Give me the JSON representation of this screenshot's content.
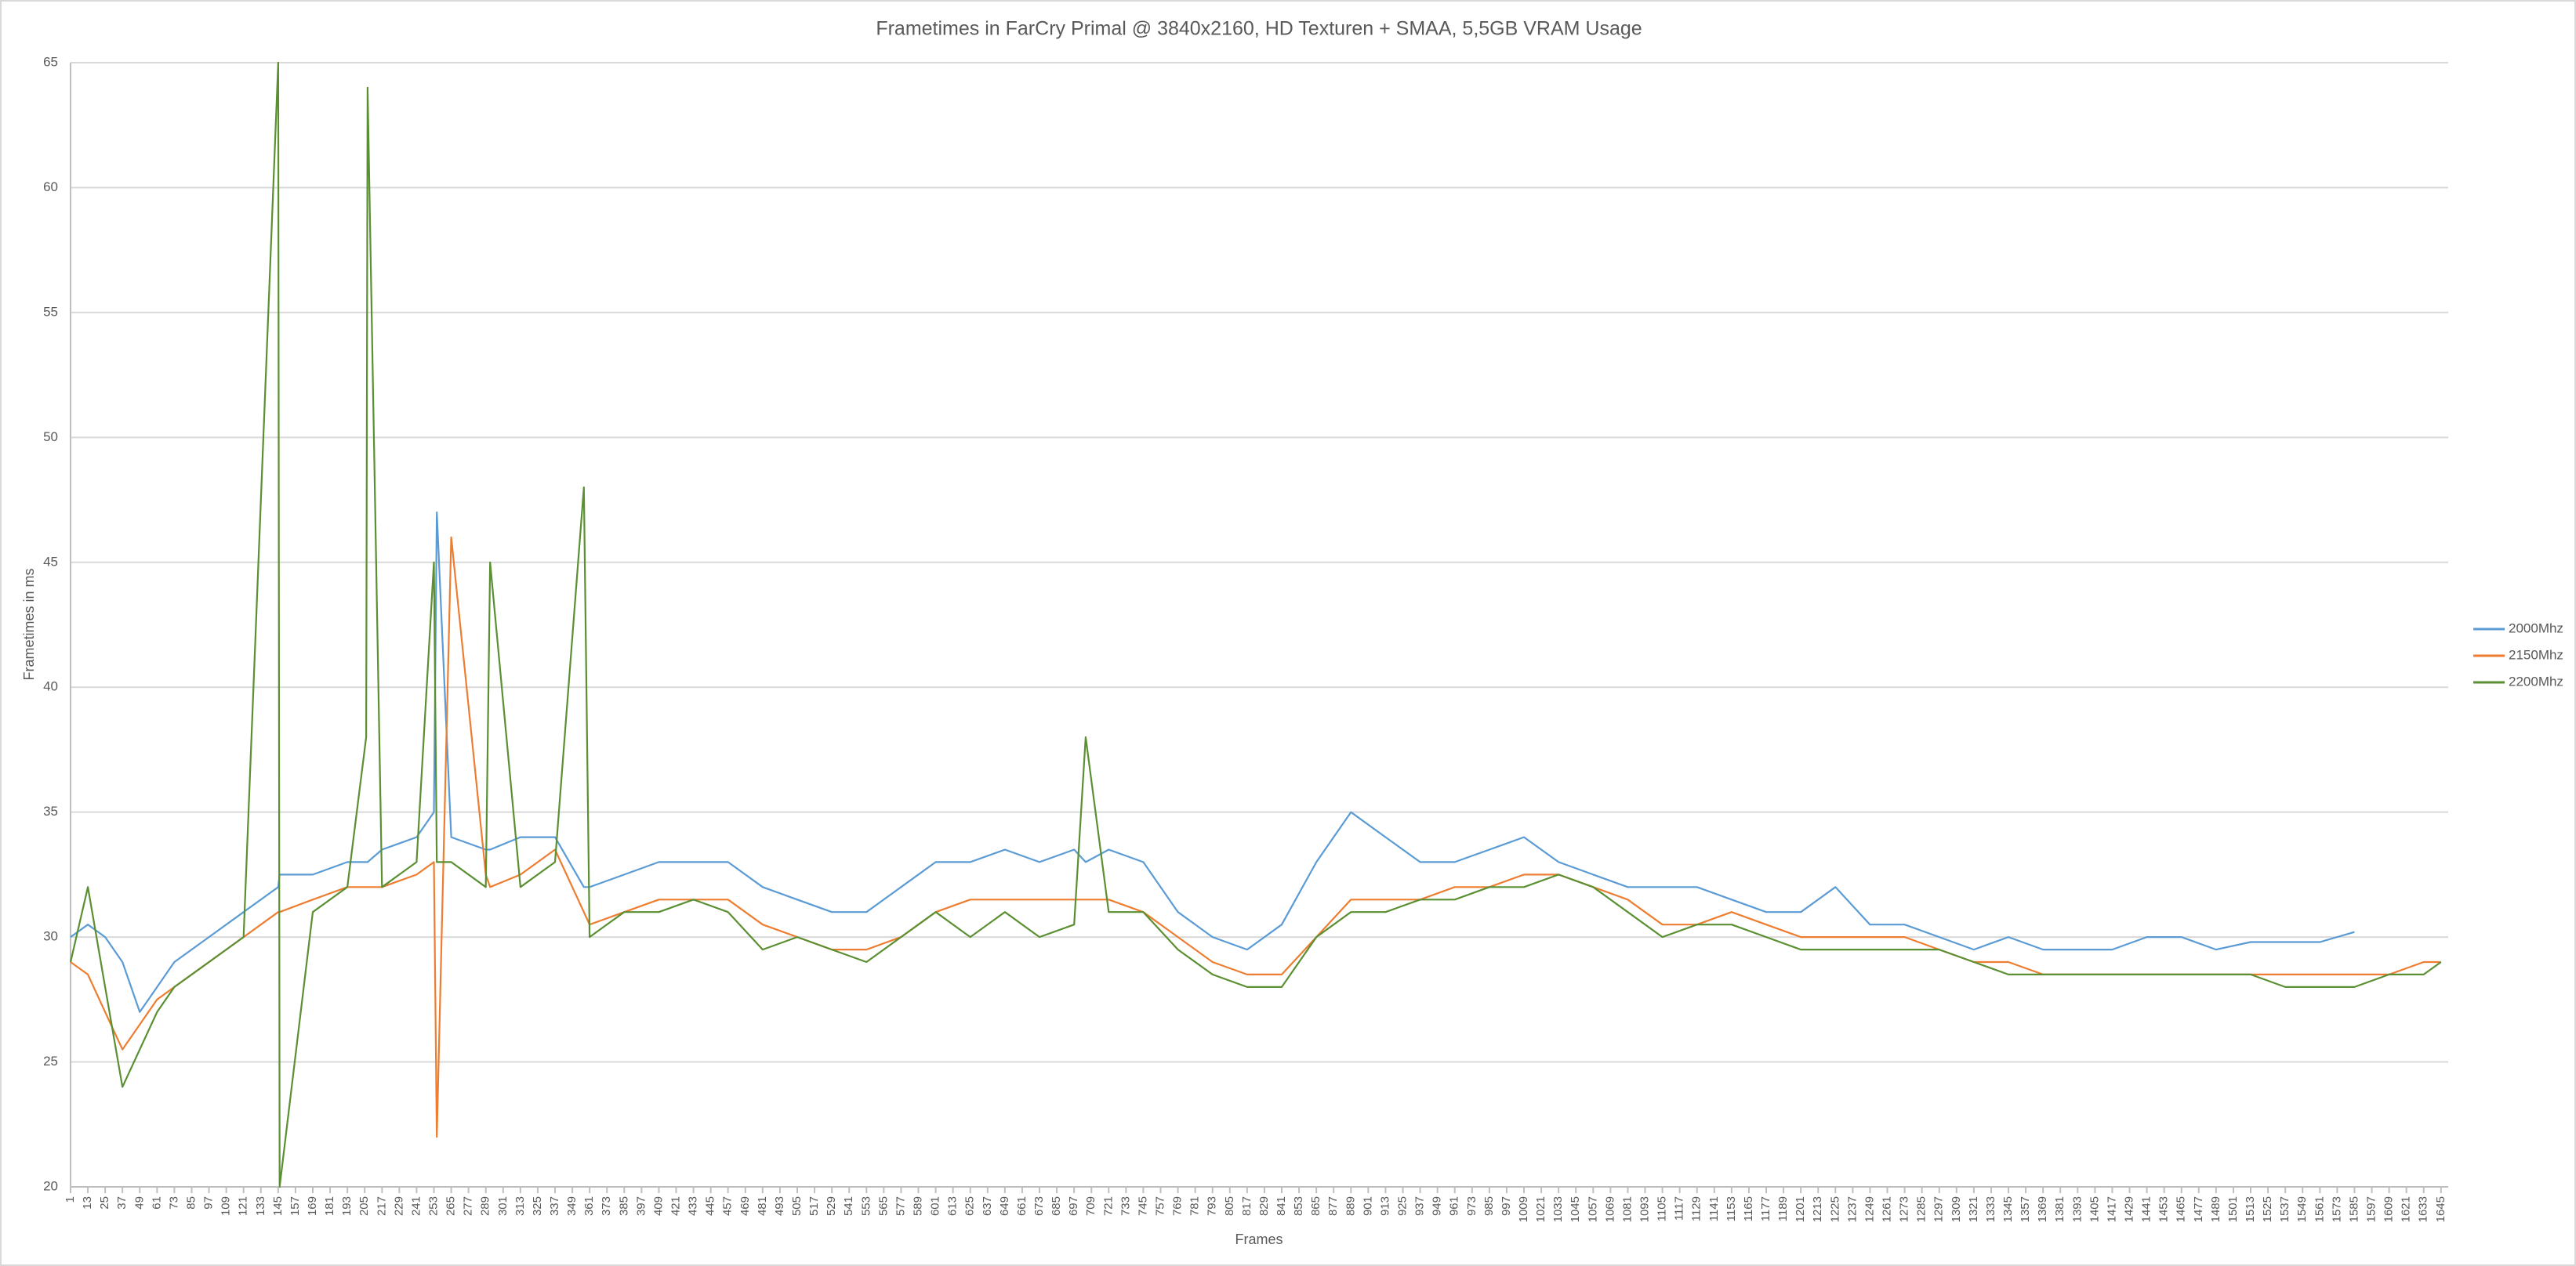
{
  "chart_data": {
    "type": "line",
    "title": "Frametimes in FarCry Primal @ 3840x2160, HD Texturen + SMAA, 5,5GB VRAM Usage",
    "xlabel": "Frames",
    "ylabel": "Frametimes in ms",
    "x": [
      1,
      13,
      25,
      37,
      49,
      61,
      73,
      97,
      121,
      145,
      146,
      169,
      193,
      206,
      207,
      217,
      241,
      253,
      255,
      265,
      289,
      292,
      313,
      337,
      357,
      361,
      385,
      409,
      433,
      457,
      481,
      505,
      529,
      553,
      577,
      601,
      625,
      649,
      673,
      697,
      705,
      721,
      745,
      769,
      793,
      817,
      841,
      865,
      889,
      913,
      937,
      961,
      985,
      1009,
      1033,
      1057,
      1081,
      1105,
      1129,
      1153,
      1177,
      1201,
      1225,
      1249,
      1273,
      1297,
      1321,
      1345,
      1369,
      1393,
      1417,
      1441,
      1465,
      1489,
      1513,
      1537,
      1561,
      1585,
      1609,
      1633,
      1645
    ],
    "series": [
      {
        "name": "2000Mhz",
        "color": "#5b9bd5",
        "values": [
          30,
          30.5,
          30,
          29,
          27,
          28,
          29,
          30,
          31,
          32,
          32.5,
          32.5,
          33,
          33,
          33,
          33.5,
          34,
          35,
          47,
          34,
          33.5,
          33.5,
          34,
          34,
          32,
          32,
          32.5,
          33,
          33,
          33,
          32,
          31.5,
          31,
          31,
          32,
          33,
          33,
          33.5,
          33,
          33.5,
          33,
          33.5,
          33,
          31,
          30,
          29.5,
          30.5,
          33,
          35,
          34,
          33,
          33,
          33.5,
          34,
          33,
          32.5,
          32,
          32,
          32,
          31.5,
          31,
          31,
          32,
          30.5,
          30.5,
          30,
          29.5,
          30,
          29.5,
          29.5,
          29.5,
          30,
          30,
          29.5,
          29.8,
          29.8,
          29.8,
          30.2,
          null,
          null,
          null
        ]
      },
      {
        "name": "2150Mhz",
        "color": "#ed7d31",
        "values": [
          29,
          28.5,
          27,
          25.5,
          26.5,
          27.5,
          28,
          29,
          30,
          31,
          31,
          31.5,
          32,
          32,
          32,
          32,
          32.5,
          33,
          22,
          46,
          32.5,
          32,
          32.5,
          33.5,
          31,
          30.5,
          31,
          31.5,
          31.5,
          31.5,
          30.5,
          30,
          29.5,
          29.5,
          30,
          31,
          31.5,
          31.5,
          31.5,
          31.5,
          31.5,
          31.5,
          31,
          30,
          29,
          28.5,
          28.5,
          30,
          31.5,
          31.5,
          31.5,
          32,
          32,
          32.5,
          32.5,
          32,
          31.5,
          30.5,
          30.5,
          31,
          30.5,
          30,
          30,
          30,
          30,
          29.5,
          29,
          29,
          28.5,
          28.5,
          28.5,
          28.5,
          28.5,
          28.5,
          28.5,
          28.5,
          28.5,
          28.5,
          28.5,
          29,
          29
        ]
      },
      {
        "name": "2200Mhz",
        "color": "#5a8f32",
        "values": [
          29,
          32,
          28,
          24,
          25.5,
          27,
          28,
          29,
          30,
          65,
          20,
          31,
          32,
          38,
          64,
          32,
          33,
          45,
          33,
          33,
          32,
          45,
          32,
          33,
          48,
          30,
          31,
          31,
          31.5,
          31,
          29.5,
          30,
          29.5,
          29,
          30,
          31,
          30,
          31,
          30,
          30.5,
          38,
          31,
          31,
          29.5,
          28.5,
          28,
          28,
          30,
          31,
          31,
          31.5,
          31.5,
          32,
          32,
          32.5,
          32,
          31,
          30,
          30.5,
          30.5,
          30,
          29.5,
          29.5,
          29.5,
          29.5,
          29.5,
          29,
          28.5,
          28.5,
          28.5,
          28.5,
          28.5,
          28.5,
          28.5,
          28.5,
          28,
          28,
          28,
          28.5,
          28.5,
          29
        ]
      }
    ],
    "xlim": [
      1,
      1650
    ],
    "xticks": [
      1,
      13,
      25,
      37,
      49,
      61,
      73,
      85,
      97,
      109,
      121,
      133,
      145,
      157,
      169,
      181,
      193,
      205,
      217,
      229,
      241,
      253,
      265,
      277,
      289,
      301,
      313,
      325,
      337,
      349,
      361,
      373,
      385,
      397,
      409,
      421,
      433,
      445,
      457,
      469,
      481,
      493,
      505,
      517,
      529,
      541,
      553,
      565,
      577,
      589,
      601,
      613,
      625,
      637,
      649,
      661,
      673,
      685,
      697,
      709,
      721,
      733,
      745,
      757,
      769,
      781,
      793,
      805,
      817,
      829,
      841,
      853,
      865,
      877,
      889,
      901,
      913,
      925,
      937,
      949,
      961,
      973,
      985,
      997,
      1009,
      1021,
      1033,
      1045,
      1057,
      1069,
      1081,
      1093,
      1105,
      1117,
      1129,
      1141,
      1153,
      1165,
      1177,
      1189,
      1201,
      1213,
      1225,
      1237,
      1249,
      1261,
      1273,
      1285,
      1297,
      1309,
      1321,
      1333,
      1345,
      1357,
      1369,
      1381,
      1393,
      1405,
      1417,
      1429,
      1441,
      1453,
      1465,
      1477,
      1489,
      1501,
      1513,
      1525,
      1537,
      1549,
      1561,
      1573,
      1585,
      1597,
      1609,
      1621,
      1633,
      1645
    ],
    "ylim": [
      20,
      65
    ],
    "yticks": [
      20,
      25,
      30,
      35,
      40,
      45,
      50,
      55,
      60,
      65
    ],
    "grid": true,
    "legend": "right"
  }
}
